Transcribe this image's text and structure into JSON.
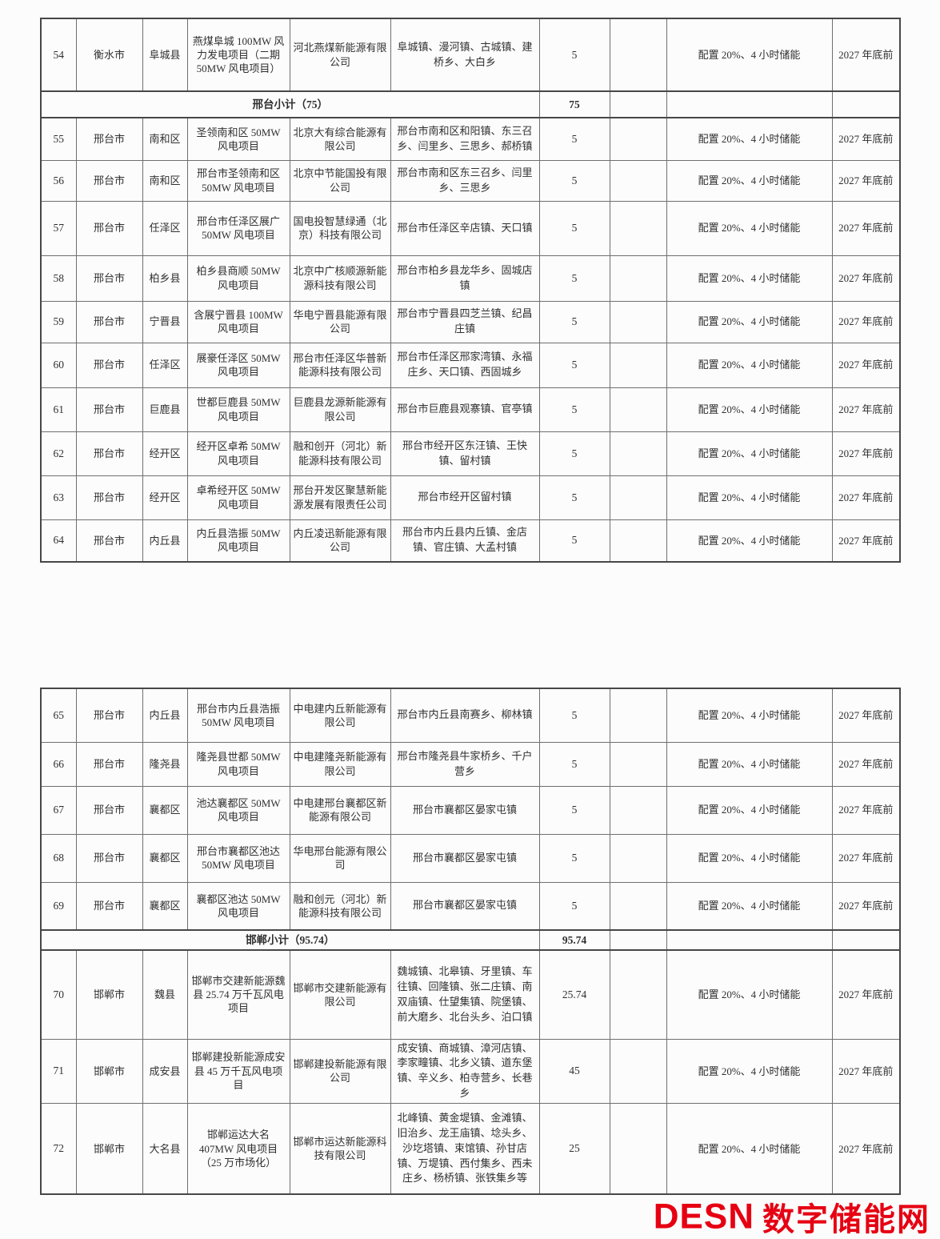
{
  "logo": {
    "brand": "DESN",
    "site_name": "数字储能网",
    "color": "#e60012"
  },
  "storage_text": "配置 20%、4 小时储能",
  "deadline_text": "2027 年底前",
  "table": {
    "sections": [
      {
        "rows": [
          {
            "type": "data",
            "no": "54",
            "city": "衡水市",
            "county": "阜城县",
            "project": "燕煤阜城 100MW 风力发电项目（二期 50MW 风电项目）",
            "company": "河北燕煤新能源有限公司",
            "townships": "阜城镇、漫河镇、古城镇、建桥乡、大白乡",
            "capacity": "5",
            "storage": "配置 20%、4 小时储能",
            "deadline": "2027 年底前"
          },
          {
            "type": "subtotal",
            "label": "邢台小计（75）",
            "capacity": "75"
          },
          {
            "type": "data",
            "no": "55",
            "city": "邢台市",
            "county": "南和区",
            "project": "圣领南和区 50MW 风电项目",
            "company": "北京大有综合能源有限公司",
            "townships": "邢台市南和区和阳镇、东三召乡、闫里乡、三思乡、郝桥镇",
            "capacity": "5",
            "storage": "配置 20%、4 小时储能",
            "deadline": "2027 年底前"
          },
          {
            "type": "data",
            "no": "56",
            "city": "邢台市",
            "county": "南和区",
            "project": "邢台市圣领南和区 50MW 风电项目",
            "company": "北京中节能国投有限公司",
            "townships": "邢台市南和区东三召乡、闫里乡、三思乡",
            "capacity": "5",
            "storage": "配置 20%、4 小时储能",
            "deadline": "2027 年底前"
          },
          {
            "type": "data",
            "no": "57",
            "city": "邢台市",
            "county": "任泽区",
            "project": "邢台市任泽区展广 50MW 风电项目",
            "company": "国电投智慧绿通（北京）科技有限公司",
            "townships": "邢台市任泽区辛店镇、天口镇",
            "capacity": "5",
            "storage": "配置 20%、4 小时储能",
            "deadline": "2027 年底前"
          },
          {
            "type": "data",
            "no": "58",
            "city": "邢台市",
            "county": "柏乡县",
            "project": "柏乡县商顺 50MW 风电项目",
            "company": "北京中广核顺源新能源科技有限公司",
            "townships": "邢台市柏乡县龙华乡、固城店镇",
            "capacity": "5",
            "storage": "配置 20%、4 小时储能",
            "deadline": "2027 年底前"
          },
          {
            "type": "data",
            "no": "59",
            "city": "邢台市",
            "county": "宁晋县",
            "project": "含展宁晋县 100MW 风电项目",
            "company": "华电宁晋县能源有限公司",
            "townships": "邢台市宁晋县四芝兰镇、纪昌庄镇",
            "capacity": "5",
            "storage": "配置 20%、4 小时储能",
            "deadline": "2027 年底前"
          },
          {
            "type": "data",
            "no": "60",
            "city": "邢台市",
            "county": "任泽区",
            "project": "展豪任泽区 50MW 风电项目",
            "company": "邢台市任泽区华普新能源科技有限公司",
            "townships": "邢台市任泽区邢家湾镇、永福庄乡、天口镇、西固城乡",
            "capacity": "5",
            "storage": "配置 20%、4 小时储能",
            "deadline": "2027 年底前"
          },
          {
            "type": "data",
            "no": "61",
            "city": "邢台市",
            "county": "巨鹿县",
            "project": "世都巨鹿县 50MW 风电项目",
            "company": "巨鹿县龙源新能源有限公司",
            "townships": "邢台市巨鹿县观寨镇、官亭镇",
            "capacity": "5",
            "storage": "配置 20%、4 小时储能",
            "deadline": "2027 年底前"
          },
          {
            "type": "data",
            "no": "62",
            "city": "邢台市",
            "county": "经开区",
            "project": "经开区卓希 50MW 风电项目",
            "company": "融和创开（河北）新能源科技有限公司",
            "townships": "邢台市经开区东汪镇、王快镇、留村镇",
            "capacity": "5",
            "storage": "配置 20%、4 小时储能",
            "deadline": "2027 年底前"
          },
          {
            "type": "data",
            "no": "63",
            "city": "邢台市",
            "county": "经开区",
            "project": "卓希经开区 50MW 风电项目",
            "company": "邢台开发区聚慧新能源发展有限责任公司",
            "townships": "邢台市经开区留村镇",
            "capacity": "5",
            "storage": "配置 20%、4 小时储能",
            "deadline": "2027 年底前"
          },
          {
            "type": "data",
            "no": "64",
            "city": "邢台市",
            "county": "内丘县",
            "project": "内丘县浩振 50MW 风电项目",
            "company": "内丘凌迅新能源有限公司",
            "townships": "邢台市内丘县内丘镇、金店镇、官庄镇、大孟村镇",
            "capacity": "5",
            "storage": "配置 20%、4 小时储能",
            "deadline": "2027 年底前"
          }
        ]
      },
      {
        "rows": [
          {
            "type": "data",
            "no": "65",
            "city": "邢台市",
            "county": "内丘县",
            "project": "邢台市内丘县浩振 50MW 风电项目",
            "company": "中电建内丘新能源有限公司",
            "townships": "邢台市内丘县南赛乡、柳林镇",
            "capacity": "5",
            "storage": "配置 20%、4 小时储能",
            "deadline": "2027 年底前"
          },
          {
            "type": "data",
            "no": "66",
            "city": "邢台市",
            "county": "隆尧县",
            "project": "隆尧县世都 50MW 风电项目",
            "company": "中电建隆尧新能源有限公司",
            "townships": "邢台市隆尧县牛家桥乡、千户营乡",
            "capacity": "5",
            "storage": "配置 20%、4 小时储能",
            "deadline": "2027 年底前"
          },
          {
            "type": "data",
            "no": "67",
            "city": "邢台市",
            "county": "襄都区",
            "project": "池达襄都区 50MW 风电项目",
            "company": "中电建邢台襄都区新能源有限公司",
            "townships": "邢台市襄都区晏家屯镇",
            "capacity": "5",
            "storage": "配置 20%、4 小时储能",
            "deadline": "2027 年底前"
          },
          {
            "type": "data",
            "no": "68",
            "city": "邢台市",
            "county": "襄都区",
            "project": "邢台市襄都区池达 50MW 风电项目",
            "company": "华电邢台能源有限公司",
            "townships": "邢台市襄都区晏家屯镇",
            "capacity": "5",
            "storage": "配置 20%、4 小时储能",
            "deadline": "2027 年底前"
          },
          {
            "type": "data",
            "no": "69",
            "city": "邢台市",
            "county": "襄都区",
            "project": "襄都区池达 50MW 风电项目",
            "company": "融和创元（河北）新能源科技有限公司",
            "townships": "邢台市襄都区晏家屯镇",
            "capacity": "5",
            "storage": "配置 20%、4 小时储能",
            "deadline": "2027 年底前"
          },
          {
            "type": "subtotal",
            "label": "邯郸小计（95.74）",
            "capacity": "95.74"
          },
          {
            "type": "data",
            "no": "70",
            "city": "邯郸市",
            "county": "魏县",
            "project": "邯郸市交建新能源魏县 25.74 万千瓦风电项目",
            "company": "邯郸市交建新能源有限公司",
            "townships": "魏城镇、北皋镇、牙里镇、车往镇、回隆镇、张二庄镇、南双庙镇、仕望集镇、院堡镇、前大磨乡、北台头乡、泊口镇",
            "capacity": "25.74",
            "storage": "配置 20%、4 小时储能",
            "deadline": "2027 年底前"
          },
          {
            "type": "data",
            "no": "71",
            "city": "邯郸市",
            "county": "成安县",
            "project": "邯郸建投新能源成安县 45 万千瓦风电项目",
            "company": "邯郸建投新能源有限公司",
            "townships": "成安镇、商城镇、漳河店镇、李家疃镇、北乡义镇、道东堡镇、辛义乡、柏寺营乡、长巷乡",
            "capacity": "45",
            "storage": "配置 20%、4 小时储能",
            "deadline": "2027 年底前"
          },
          {
            "type": "data",
            "no": "72",
            "city": "邯郸市",
            "county": "大名县",
            "project": "邯郸运达大名 407MW 风电项目（25 万市场化）",
            "company": "邯郸市运达新能源科技有限公司",
            "townships": "北峰镇、黄金堤镇、金滩镇、旧治乡、龙王庙镇、埝头乡、沙圪塔镇、束馆镇、孙甘店镇、万堤镇、西付集乡、西未庄乡、杨桥镇、张铁集乡等",
            "capacity": "25",
            "storage": "配置 20%、4 小时储能",
            "deadline": "2027 年底前"
          }
        ]
      }
    ]
  }
}
